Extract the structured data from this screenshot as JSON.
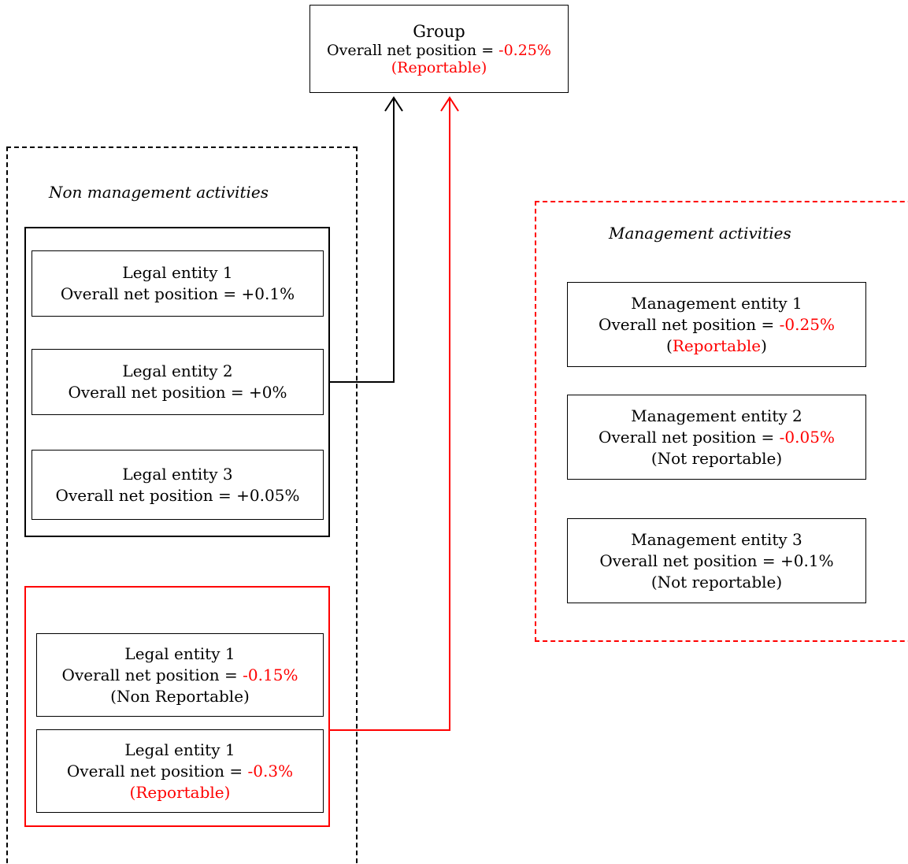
{
  "colors": {
    "highlight": "#ff0000",
    "line": "#000000"
  },
  "group": {
    "title": "Group",
    "position_prefix": "Overall net position = ",
    "position_value": "-0.25%",
    "status": "(Reportable)"
  },
  "non_management": {
    "caption": "Non management activities",
    "black_group": [
      {
        "title": "Legal entity 1",
        "position": "Overall net position = +0.1%"
      },
      {
        "title": "Legal entity 2",
        "position": "Overall net position = +0%"
      },
      {
        "title": "Legal entity 3",
        "position": "Overall net position = +0.05%"
      }
    ],
    "red_group": [
      {
        "title": "Legal entity 1",
        "position_prefix": "Overall net position = ",
        "position_value": "-0.15%",
        "status": "(Non Reportable)"
      },
      {
        "title": "Legal entity 1",
        "position_prefix": "Overall net position = ",
        "position_value": "-0.3%",
        "status": "(Reportable)"
      }
    ]
  },
  "management": {
    "caption": "Management activities",
    "entities": [
      {
        "title": "Management entity 1",
        "position_prefix": "Overall net position = ",
        "position_value": "-0.25%",
        "status_open": "(",
        "status_word": "Reportable",
        "status_close": ")"
      },
      {
        "title": "Management entity 2",
        "position_prefix": "Overall net position = ",
        "position_value": "-0.05%",
        "status": "(Not reportable)"
      },
      {
        "title": "Management entity 3",
        "position": "Overall net position = +0.1%",
        "status": "(Not reportable)"
      }
    ]
  }
}
